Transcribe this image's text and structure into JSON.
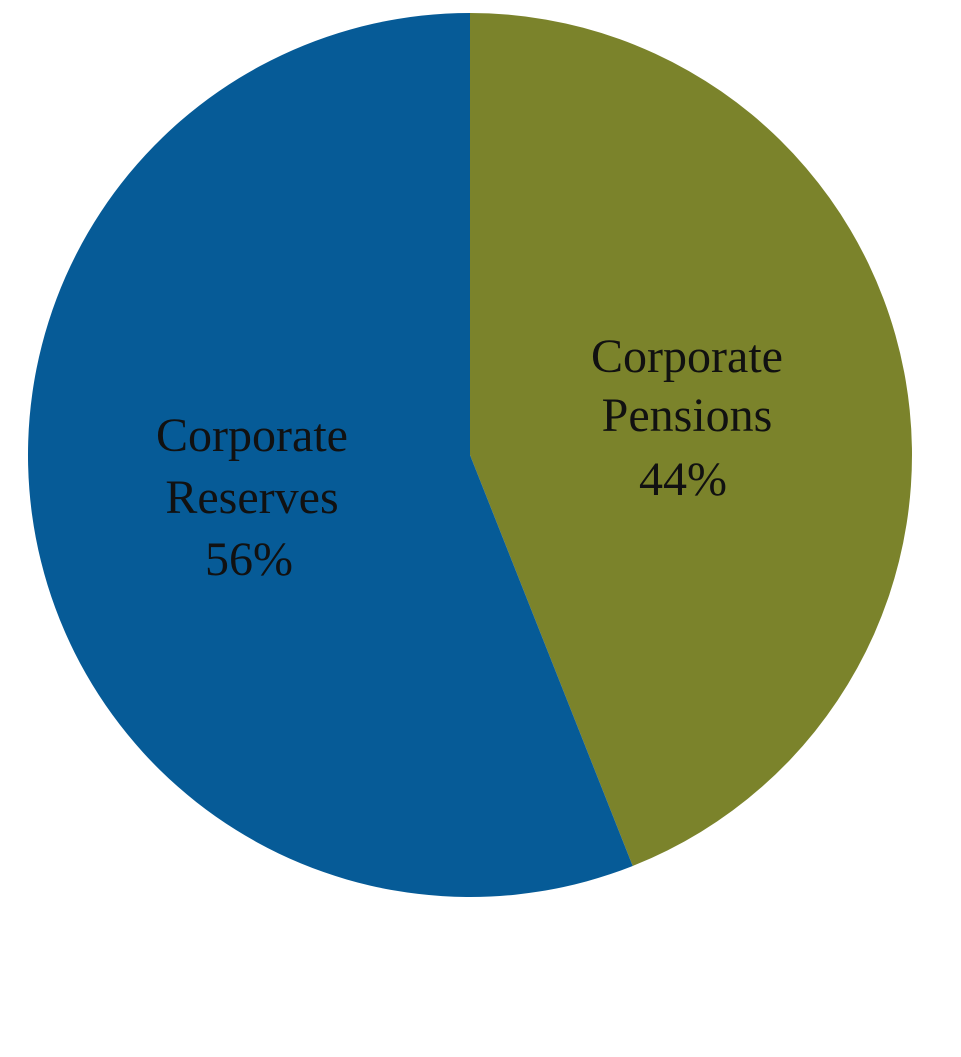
{
  "chart_data": {
    "type": "pie",
    "start_angle": "12 o'clock",
    "direction": "clockwise",
    "slices": [
      {
        "name_line1": "Corporate",
        "name_line2": "Pensions",
        "value": 44,
        "value_label": "44%",
        "color": "#7b832b"
      },
      {
        "name_line1": "Corporate",
        "name_line2": "Reserves",
        "value": 56,
        "value_label": "56%",
        "color": "#065b97"
      }
    ],
    "data_labels": "inside"
  }
}
